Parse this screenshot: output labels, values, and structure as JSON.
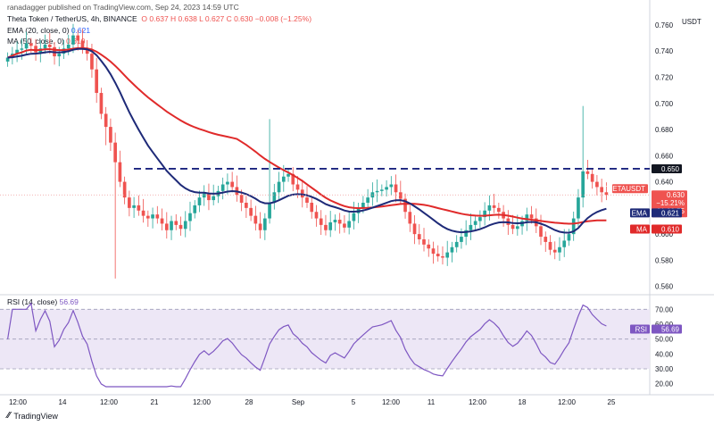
{
  "header": {
    "published": "ranadagger published on TradingView.com, Sep 24, 2023 14:59 UTC",
    "symbol": "Theta Token / TetherUS, 4h, BINANCE",
    "ohlc": "O 0.637  H 0.638  L 0.627  C 0.630  −0.008 (−1.25%)",
    "ema_label": "EMA (20, close, 0)",
    "ema_value": "0.621",
    "ma_label": "MA (50, close, 0)",
    "ma_value": "0.610",
    "rsi_label": "RSI (14, close)",
    "rsi_value": "56.69",
    "currency": "USDT"
  },
  "badges": {
    "resistance": "0.650",
    "ticker": "THETAUSDT",
    "price": "0.630",
    "change": "−15.21%",
    "countdown": "01:00:55",
    "ema_tag": "EMA",
    "ema_val": "0.621",
    "ma_tag": "MA",
    "ma_val": "0.610",
    "rsi_tag": "RSI",
    "rsi_val": "56.69"
  },
  "footer": {
    "brand": "TradingView"
  },
  "colors": {
    "up": "#26a69a",
    "down": "#ef5350",
    "ema": "#1e2a78",
    "ma": "#e02a2a",
    "rsi": "#7e57c2",
    "rsi_band": "#ede7f6",
    "level": "#1a237e"
  },
  "chart_data": {
    "type": "candlestick",
    "price_ticks": [
      "0.760",
      "0.740",
      "0.720",
      "0.700",
      "0.680",
      "0.660",
      "0.640",
      "0.620",
      "0.600",
      "0.580",
      "0.560"
    ],
    "price_range": [
      0.555,
      0.762
    ],
    "resistance_level": 0.65,
    "rsi_ticks": [
      "70.00",
      "60.00",
      "50.00",
      "40.00",
      "30.00",
      "20.00"
    ],
    "rsi_band": [
      30,
      70
    ],
    "rsi_range": [
      15,
      75
    ],
    "x_labels": [
      "12:00",
      "14",
      "12:00",
      "21",
      "12:00",
      "28",
      "Sep",
      "5",
      "12:00",
      "11",
      "12:00",
      "18",
      "12:00",
      "25"
    ],
    "candles_close": [
      0.735,
      0.738,
      0.741,
      0.742,
      0.746,
      0.744,
      0.739,
      0.742,
      0.745,
      0.743,
      0.736,
      0.738,
      0.742,
      0.745,
      0.752,
      0.748,
      0.742,
      0.738,
      0.726,
      0.708,
      0.692,
      0.682,
      0.67,
      0.655,
      0.64,
      0.628,
      0.62,
      0.622,
      0.618,
      0.614,
      0.612,
      0.615,
      0.612,
      0.608,
      0.603,
      0.61,
      0.607,
      0.604,
      0.61,
      0.616,
      0.622,
      0.628,
      0.631,
      0.626,
      0.629,
      0.633,
      0.638,
      0.64,
      0.636,
      0.63,
      0.624,
      0.62,
      0.614,
      0.608,
      0.603,
      0.612,
      0.624,
      0.632,
      0.64,
      0.644,
      0.646,
      0.638,
      0.634,
      0.628,
      0.624,
      0.617,
      0.612,
      0.607,
      0.603,
      0.609,
      0.611,
      0.608,
      0.605,
      0.61,
      0.616,
      0.62,
      0.624,
      0.628,
      0.632,
      0.633,
      0.634,
      0.636,
      0.638,
      0.632,
      0.627,
      0.617,
      0.608,
      0.6,
      0.596,
      0.592,
      0.589,
      0.585,
      0.583,
      0.582,
      0.586,
      0.59,
      0.594,
      0.598,
      0.603,
      0.607,
      0.61,
      0.613,
      0.618,
      0.622,
      0.62,
      0.617,
      0.612,
      0.607,
      0.604,
      0.606,
      0.61,
      0.615,
      0.612,
      0.606,
      0.598,
      0.594,
      0.588,
      0.586,
      0.59,
      0.595,
      0.6,
      0.612,
      0.628,
      0.648,
      0.646,
      0.64,
      0.636,
      0.632,
      0.63
    ],
    "ema20_last": 0.621,
    "ma50_last": 0.61,
    "rsi_last": 56.69
  }
}
